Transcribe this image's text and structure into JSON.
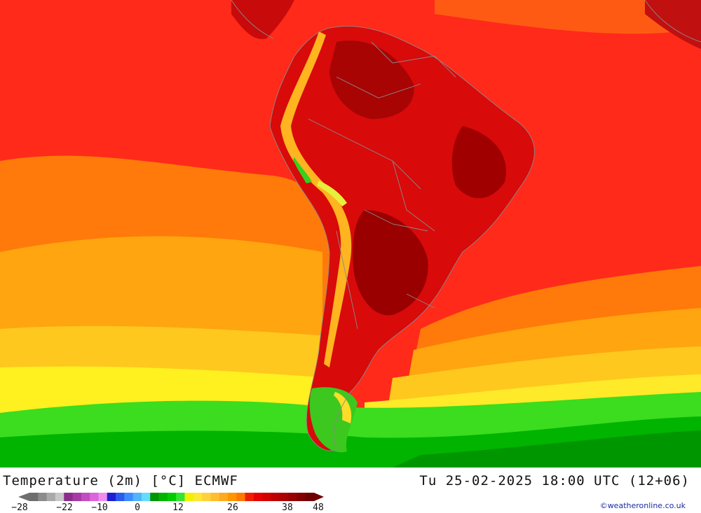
{
  "map": {
    "title": "Temperature (2m) [°C] ECMWF",
    "valid_time": "Tu 25-02-2025 18:00 UTC (12+06)",
    "credit": "©weatheronline.co.uk",
    "region": "South America"
  },
  "legend": {
    "ticks": [
      "-28",
      "-22",
      "-10",
      "0",
      "12",
      "26",
      "38",
      "48"
    ],
    "colors": [
      "#6e6e6e",
      "#8c8c8c",
      "#aaaaaa",
      "#c8c8c8",
      "#8b2e8b",
      "#a63aa6",
      "#c24cc2",
      "#dc64dc",
      "#f08cf0",
      "#1e1ed2",
      "#2a5af0",
      "#3c8cff",
      "#50b4ff",
      "#64dcff",
      "#009600",
      "#00b400",
      "#00cc00",
      "#32e632",
      "#f0f000",
      "#ffe632",
      "#ffd23c",
      "#ffbe32",
      "#ffaa1e",
      "#ff9600",
      "#ff7800",
      "#f01e00",
      "#e60000",
      "#d20000",
      "#be0000",
      "#aa0000",
      "#960000",
      "#820000",
      "#6e0000"
    ]
  }
}
